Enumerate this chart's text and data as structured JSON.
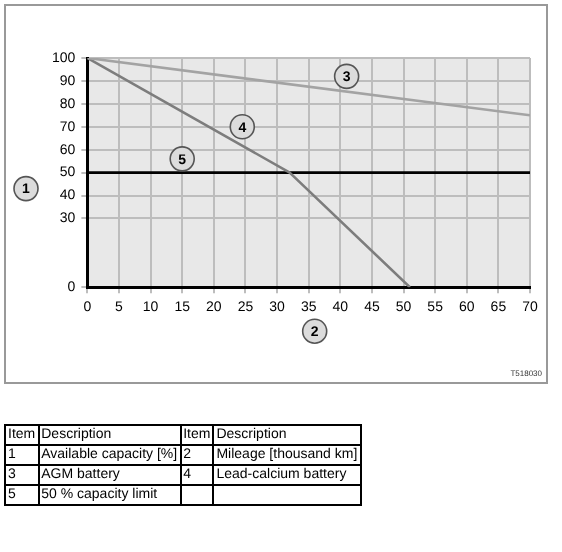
{
  "chart_data": {
    "type": "line",
    "xlabel": "2",
    "ylabel": "1",
    "x": [
      0,
      70
    ],
    "xlim": [
      0,
      70
    ],
    "xticks": [
      0,
      5,
      10,
      15,
      20,
      25,
      30,
      35,
      40,
      45,
      50,
      55,
      60,
      65,
      70
    ],
    "ylim": [
      0,
      100
    ],
    "yticks": [
      0,
      30,
      40,
      50,
      60,
      70,
      80,
      90,
      100
    ],
    "series": [
      {
        "color": "#a3a3a3",
        "values": [
          100,
          75
        ]
      },
      {
        "color": "#7d7d7d",
        "x": [
          0,
          32,
          51
        ],
        "values": [
          100,
          50,
          0
        ]
      },
      {
        "color": "#000000",
        "values": [
          50,
          50
        ]
      }
    ],
    "grid": true,
    "legend": false,
    "marker": "none",
    "line_style": "solid",
    "annotations": [
      {
        "text": "3",
        "x": 41,
        "y": 92
      },
      {
        "text": "4",
        "x": 24.5,
        "y": 70
      },
      {
        "text": "5",
        "x": 15,
        "y": 56
      },
      "T518030",
      "Item",
      "Description",
      "Item",
      "Description",
      "1",
      "Available capacity [%]",
      "2",
      "Mileage [thousand km]",
      "3",
      "AGM battery",
      "4",
      "Lead-calcium battery",
      "5",
      "50 % capacity limit"
    ]
  }
}
